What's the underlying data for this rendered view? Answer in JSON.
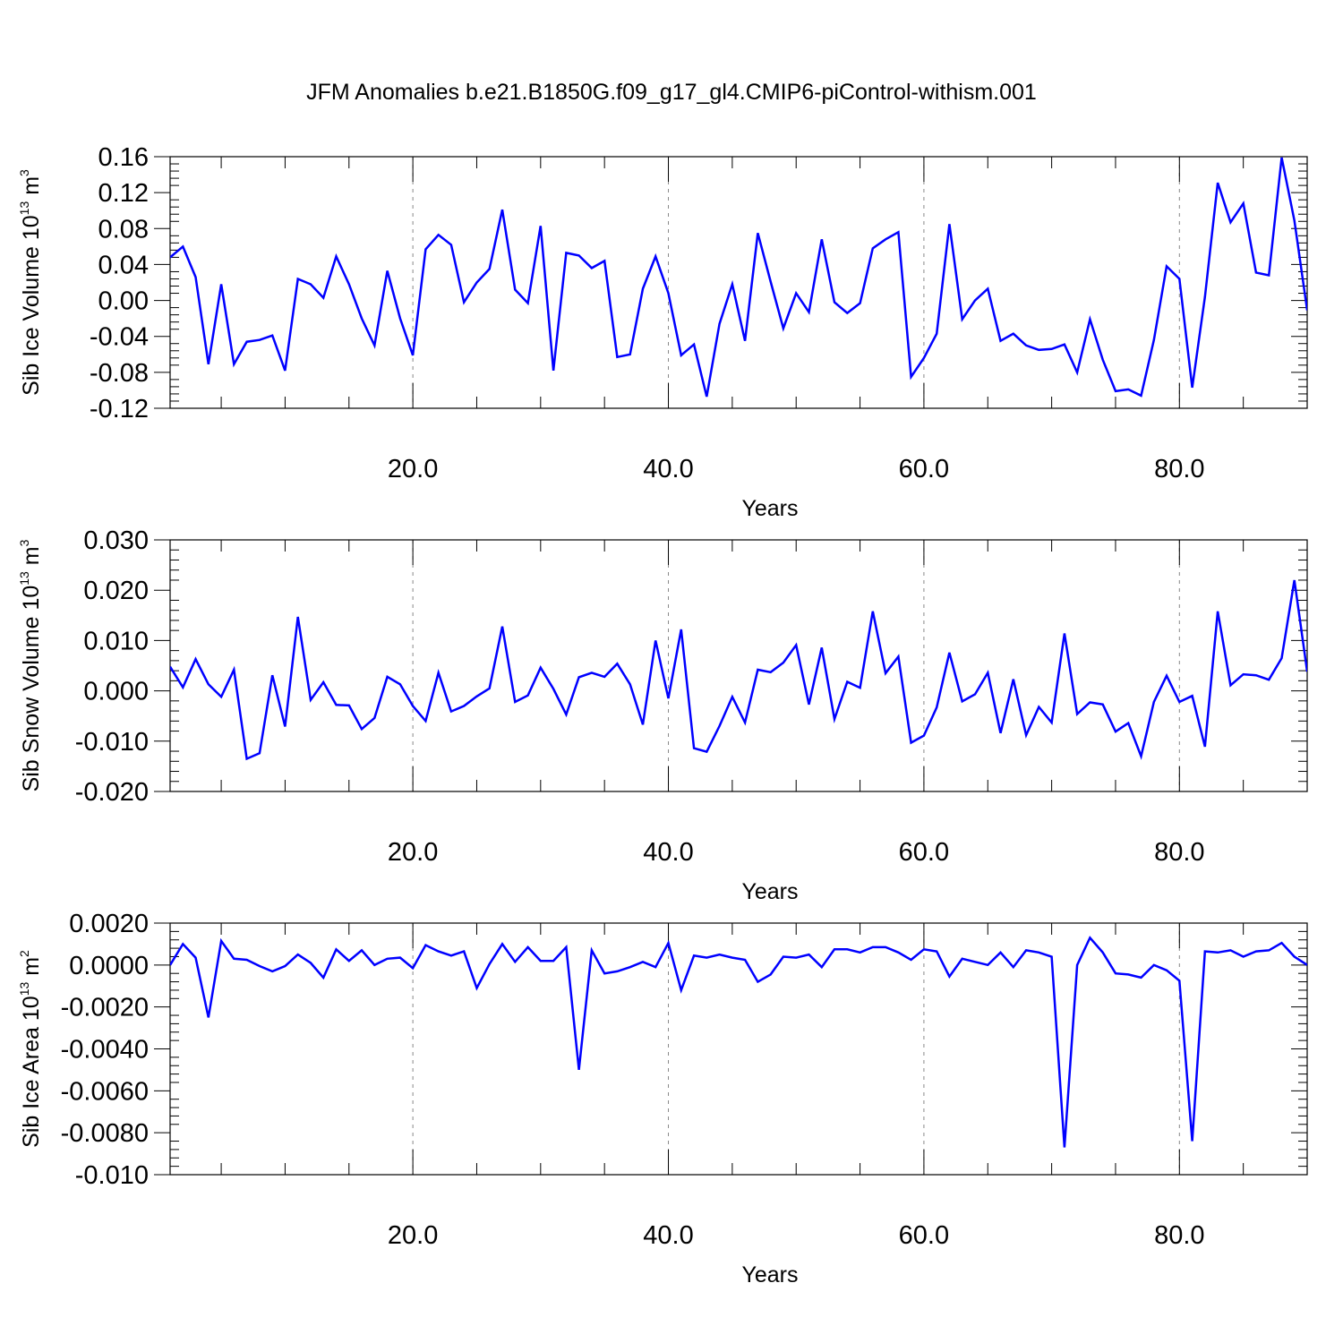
{
  "title": "JFM Anomalies b.e21.B1850G.f09_g17_gl4.CMIP6-piControl-withism.001",
  "line_color": "#0000ff",
  "chart_data": [
    {
      "type": "line",
      "title": "JFM Anomalies b.e21.B1850G.f09_g17_gl4.CMIP6-piControl-withism.001",
      "xlabel": "Years",
      "ylabel": {
        "text": "Sib Ice Volume 10",
        "sup": "13",
        "unit": " m",
        "unit_sup": "3"
      },
      "xlim": [
        1,
        90
      ],
      "ylim": [
        -0.12,
        0.16
      ],
      "xticks": [
        20,
        40,
        60,
        80
      ],
      "xtick_labels": [
        "20.0",
        "40.0",
        "60.0",
        "80.0"
      ],
      "yticks": [
        0.16,
        0.12,
        0.08,
        0.04,
        0.0,
        -0.04,
        -0.08,
        -0.12
      ],
      "ytick_labels": [
        "0.16",
        "0.12",
        "0.08",
        "0.04",
        "0.00",
        "-0.04",
        "-0.08",
        "-0.12"
      ],
      "grid": "dashed vertical lines at major x ticks",
      "series": [
        {
          "x": [
            1,
            2,
            3,
            4,
            5,
            6,
            7,
            8,
            9,
            10,
            11,
            12,
            13,
            14,
            15,
            16,
            17,
            18,
            19,
            20,
            21,
            22,
            23,
            24,
            25,
            26,
            27,
            28,
            29,
            30,
            31,
            32,
            33,
            34,
            35,
            36,
            37,
            38,
            39,
            40,
            41,
            42,
            43,
            44,
            45,
            46,
            47,
            48,
            49,
            50,
            51,
            52,
            53,
            54,
            55,
            56,
            57,
            58,
            59,
            60,
            61,
            62,
            63,
            64,
            65,
            66,
            67,
            68,
            69,
            70,
            71,
            72,
            73,
            74,
            75,
            76,
            77,
            78,
            79,
            80,
            81,
            82,
            83,
            84,
            85,
            86,
            87,
            88,
            89,
            90
          ],
          "y": [
            0.048,
            0.06,
            0.026,
            -0.071,
            0.018,
            -0.071,
            -0.046,
            -0.044,
            -0.039,
            -0.078,
            0.024,
            0.018,
            0.003,
            0.049,
            0.018,
            -0.02,
            -0.05,
            0.033,
            -0.02,
            -0.061,
            0.057,
            0.073,
            0.062,
            -0.002,
            0.02,
            0.035,
            0.101,
            0.012,
            -0.003,
            0.083,
            -0.078,
            0.053,
            0.05,
            0.036,
            0.044,
            -0.063,
            -0.06,
            0.013,
            0.049,
            0.008,
            -0.061,
            -0.049,
            -0.107,
            -0.026,
            0.018,
            -0.045,
            0.075,
            0.021,
            -0.031,
            0.008,
            -0.013,
            0.068,
            -0.002,
            -0.014,
            -0.003,
            0.058,
            0.068,
            0.076,
            -0.085,
            -0.064,
            -0.037,
            0.085,
            -0.021,
            0.0,
            0.013,
            -0.045,
            -0.037,
            -0.05,
            -0.055,
            -0.054,
            -0.049,
            -0.08,
            -0.021,
            -0.066,
            -0.101,
            -0.099,
            -0.106,
            -0.044,
            0.038,
            0.024,
            -0.097,
            0.004,
            0.131,
            0.087,
            0.108,
            0.031,
            0.028,
            0.159,
            0.089,
            -0.011
          ]
        }
      ]
    },
    {
      "type": "line",
      "xlabel": "Years",
      "ylabel": {
        "text": "Sib Snow Volume 10",
        "sup": "13",
        "unit": " m",
        "unit_sup": "3"
      },
      "xlim": [
        1,
        90
      ],
      "ylim": [
        -0.02,
        0.03
      ],
      "xticks": [
        20,
        40,
        60,
        80
      ],
      "xtick_labels": [
        "20.0",
        "40.0",
        "60.0",
        "80.0"
      ],
      "yticks": [
        0.03,
        0.02,
        0.01,
        0.0,
        -0.01,
        -0.02
      ],
      "ytick_labels": [
        "0.030",
        "0.020",
        "0.010",
        "0.000",
        "-0.010",
        "-0.020"
      ],
      "grid": "dashed vertical lines at major x ticks",
      "series": [
        {
          "x": [
            1,
            2,
            3,
            4,
            5,
            6,
            7,
            8,
            9,
            10,
            11,
            12,
            13,
            14,
            15,
            16,
            17,
            18,
            19,
            20,
            21,
            22,
            23,
            24,
            25,
            26,
            27,
            28,
            29,
            30,
            31,
            32,
            33,
            34,
            35,
            36,
            37,
            38,
            39,
            40,
            41,
            42,
            43,
            44,
            45,
            46,
            47,
            48,
            49,
            50,
            51,
            52,
            53,
            54,
            55,
            56,
            57,
            58,
            59,
            60,
            61,
            62,
            63,
            64,
            65,
            66,
            67,
            68,
            69,
            70,
            71,
            72,
            73,
            74,
            75,
            76,
            77,
            78,
            79,
            80,
            81,
            82,
            83,
            84,
            85,
            86,
            87,
            88,
            89,
            90
          ],
          "y": [
            0.0048,
            0.0007,
            0.0063,
            0.0013,
            -0.0012,
            0.0042,
            -0.0135,
            -0.0124,
            0.0031,
            -0.0071,
            0.0147,
            -0.0018,
            0.0017,
            -0.0028,
            -0.0029,
            -0.0076,
            -0.0054,
            0.0028,
            0.0013,
            -0.003,
            -0.006,
            0.0036,
            -0.0041,
            -0.003,
            -0.0011,
            0.0005,
            0.0128,
            -0.0022,
            -0.0009,
            0.0046,
            0.0004,
            -0.0047,
            0.0027,
            0.0036,
            0.0028,
            0.0054,
            0.0013,
            -0.0067,
            0.01,
            -0.0015,
            0.0122,
            -0.0114,
            -0.0121,
            -0.007,
            -0.0012,
            -0.0063,
            0.0042,
            0.0037,
            0.0056,
            0.0091,
            -0.0027,
            0.0086,
            -0.0056,
            0.0018,
            0.0006,
            0.0158,
            0.0035,
            0.0068,
            -0.0103,
            -0.0089,
            -0.0033,
            0.0076,
            -0.0021,
            -0.0007,
            0.0036,
            -0.0084,
            0.0023,
            -0.0088,
            -0.0032,
            -0.0063,
            0.0114,
            -0.0046,
            -0.0023,
            -0.0027,
            -0.0081,
            -0.0064,
            -0.013,
            -0.0022,
            0.003,
            -0.0022,
            -0.001,
            -0.0111,
            0.0158,
            0.0011,
            0.0033,
            0.0031,
            0.0022,
            0.0065,
            0.022,
            0.0038
          ]
        }
      ]
    },
    {
      "type": "line",
      "xlabel": "Years",
      "ylabel": {
        "text": "Sib Ice Area 10",
        "sup": "13",
        "unit": " m",
        "unit_sup": "2"
      },
      "xlim": [
        1,
        90
      ],
      "ylim": [
        -0.01,
        0.002
      ],
      "xticks": [
        20,
        40,
        60,
        80
      ],
      "xtick_labels": [
        "20.0",
        "40.0",
        "60.0",
        "80.0"
      ],
      "yticks": [
        0.002,
        0.0,
        -0.002,
        -0.004,
        -0.006,
        -0.008,
        -0.01
      ],
      "ytick_labels": [
        "0.0020",
        "0.0000",
        "-0.0020",
        "-0.0040",
        "-0.0060",
        "-0.0080",
        "-0.010"
      ],
      "grid": "dashed vertical lines at major x ticks",
      "series": [
        {
          "x": [
            1,
            2,
            3,
            4,
            5,
            6,
            7,
            8,
            9,
            10,
            11,
            12,
            13,
            14,
            15,
            16,
            17,
            18,
            19,
            20,
            21,
            22,
            23,
            24,
            25,
            26,
            27,
            28,
            29,
            30,
            31,
            32,
            33,
            34,
            35,
            36,
            37,
            38,
            39,
            40,
            41,
            42,
            43,
            44,
            45,
            46,
            47,
            48,
            49,
            50,
            51,
            52,
            53,
            54,
            55,
            56,
            57,
            58,
            59,
            60,
            61,
            62,
            63,
            64,
            65,
            66,
            67,
            68,
            69,
            70,
            71,
            72,
            73,
            74,
            75,
            76,
            77,
            78,
            79,
            80,
            81,
            82,
            83,
            84,
            85,
            86,
            87,
            88,
            89,
            90
          ],
          "y": [
            0.0,
            0.001,
            0.00035,
            -0.0025,
            0.00115,
            0.0003,
            0.00025,
            -5e-05,
            -0.0003,
            -5e-05,
            0.0005,
            0.0001,
            -0.0006,
            0.00075,
            0.0002,
            0.0007,
            0.0,
            0.0003,
            0.00035,
            -0.00015,
            0.00095,
            0.00065,
            0.00045,
            0.00065,
            -0.0011,
            5e-05,
            0.001,
            0.00015,
            0.00085,
            0.0002,
            0.0002,
            0.00085,
            -0.005,
            0.0007,
            -0.0004,
            -0.0003,
            -0.0001,
            0.00015,
            -0.0001,
            0.00105,
            -0.0012,
            0.00045,
            0.00035,
            0.0005,
            0.00035,
            0.00025,
            -0.0008,
            -0.00045,
            0.0004,
            0.00035,
            0.0005,
            -0.0001,
            0.00075,
            0.00075,
            0.0006,
            0.00085,
            0.00085,
            0.0006,
            0.00025,
            0.00075,
            0.00065,
            -0.00055,
            0.0003,
            0.00015,
            0.0,
            0.0006,
            -0.0001,
            0.0007,
            0.0006,
            0.0004,
            -0.0087,
            0.0,
            0.0013,
            0.0006,
            -0.0004,
            -0.00045,
            -0.0006,
            0.0,
            -0.00025,
            -0.00075,
            -0.0084,
            0.00065,
            0.0006,
            0.0007,
            0.0004,
            0.00065,
            0.0007,
            0.00105,
            0.0004,
            0.0
          ]
        }
      ]
    }
  ]
}
